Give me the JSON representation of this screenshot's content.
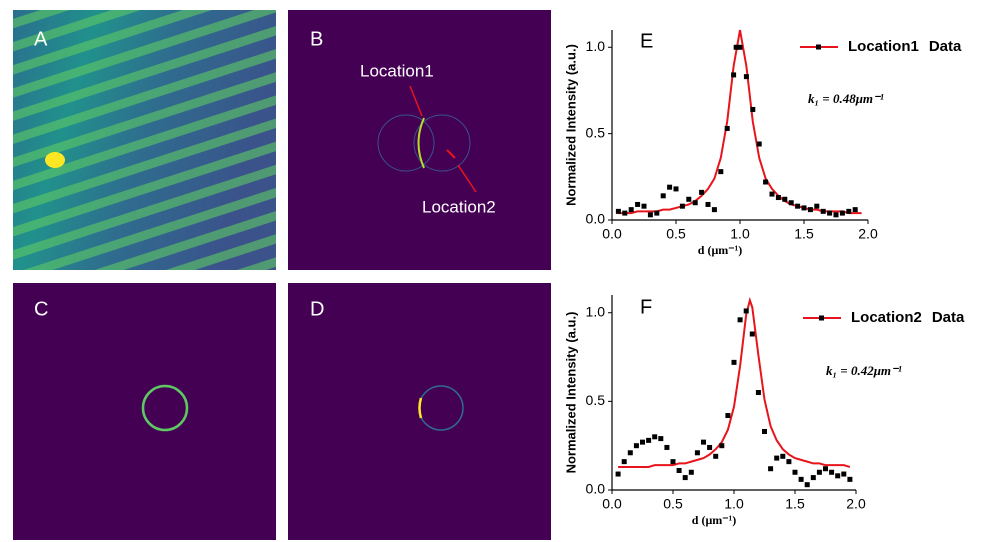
{
  "panels": [
    {
      "label": "A"
    },
    {
      "label": "B",
      "annotations": [
        "Location1",
        "Location2"
      ]
    },
    {
      "label": "C"
    },
    {
      "label": "D"
    }
  ],
  "chart_data": [
    {
      "type": "line",
      "label": "E",
      "xlabel": "d (μm⁻¹)",
      "ylabel": "Normalized Intensity (a.u.)",
      "annotation": "k₁ = 0.48μm⁻¹",
      "xlim": [
        0,
        2
      ],
      "ylim": [
        0,
        1.1
      ],
      "xticks": [
        {
          "value": 0,
          "label": "0.0"
        },
        0.5,
        {
          "value": 1,
          "label": "1.0"
        },
        1.5,
        {
          "value": 2,
          "label": "2.0"
        }
      ],
      "yticks": [
        {
          "value": 0,
          "label": "0.0"
        },
        0.5,
        {
          "value": 1,
          "label": "1.0"
        }
      ],
      "series": [
        {
          "name": "Location1",
          "type": "line",
          "color": "#e8141c",
          "x": [
            0.05,
            0.1,
            0.15,
            0.2,
            0.25,
            0.3,
            0.35,
            0.4,
            0.45,
            0.5,
            0.55,
            0.6,
            0.65,
            0.7,
            0.75,
            0.8,
            0.85,
            0.9,
            0.95,
            1.0,
            1.05,
            1.1,
            1.15,
            1.2,
            1.25,
            1.3,
            1.35,
            1.4,
            1.45,
            1.5,
            1.55,
            1.6,
            1.65,
            1.7,
            1.75,
            1.8,
            1.85,
            1.9,
            1.95
          ],
          "values": [
            0.04,
            0.04,
            0.04,
            0.05,
            0.05,
            0.05,
            0.05,
            0.06,
            0.06,
            0.07,
            0.08,
            0.09,
            0.11,
            0.14,
            0.18,
            0.24,
            0.36,
            0.57,
            0.89,
            1.1,
            0.89,
            0.57,
            0.36,
            0.24,
            0.18,
            0.14,
            0.11,
            0.09,
            0.08,
            0.07,
            0.06,
            0.06,
            0.05,
            0.05,
            0.05,
            0.05,
            0.04,
            0.04,
            0.04
          ]
        },
        {
          "name": "Data",
          "type": "scatter",
          "color": "#000000",
          "x": [
            0.05,
            0.1,
            0.15,
            0.2,
            0.25,
            0.3,
            0.35,
            0.4,
            0.45,
            0.5,
            0.55,
            0.6,
            0.65,
            0.7,
            0.75,
            0.8,
            0.85,
            0.9,
            0.95,
            0.97,
            1.0,
            1.05,
            1.1,
            1.15,
            1.2,
            1.25,
            1.3,
            1.35,
            1.4,
            1.45,
            1.5,
            1.55,
            1.6,
            1.65,
            1.7,
            1.75,
            1.8,
            1.85,
            1.9
          ],
          "values": [
            0.05,
            0.04,
            0.06,
            0.09,
            0.08,
            0.03,
            0.04,
            0.14,
            0.19,
            0.18,
            0.08,
            0.12,
            0.1,
            0.16,
            0.09,
            0.06,
            0.28,
            0.53,
            0.84,
            1.0,
            1.0,
            0.83,
            0.64,
            0.44,
            0.22,
            0.15,
            0.13,
            0.12,
            0.1,
            0.08,
            0.07,
            0.06,
            0.08,
            0.05,
            0.04,
            0.03,
            0.04,
            0.05,
            0.06
          ]
        }
      ]
    },
    {
      "type": "line",
      "label": "F",
      "xlabel": "d (μm⁻¹)",
      "ylabel": "Normalized Intensity (a.u.)",
      "annotation": "k₁ = 0.42μm⁻¹",
      "xlim": [
        0,
        2
      ],
      "ylim": [
        0,
        1.1
      ],
      "xticks": [
        {
          "value": 0,
          "label": "0.0"
        },
        0.5,
        {
          "value": 1,
          "label": "1.0"
        },
        1.5,
        {
          "value": 2,
          "label": "2.0"
        }
      ],
      "yticks": [
        {
          "value": 0,
          "label": "0.0"
        },
        0.5,
        {
          "value": 1,
          "label": "1.0"
        }
      ],
      "series": [
        {
          "name": "Location2",
          "type": "line",
          "color": "#e8141c",
          "x": [
            0.05,
            0.1,
            0.15,
            0.2,
            0.25,
            0.3,
            0.35,
            0.4,
            0.45,
            0.5,
            0.55,
            0.6,
            0.65,
            0.7,
            0.75,
            0.8,
            0.85,
            0.9,
            0.95,
            1.0,
            1.05,
            1.1,
            1.13,
            1.15,
            1.2,
            1.25,
            1.3,
            1.35,
            1.4,
            1.45,
            1.5,
            1.55,
            1.6,
            1.65,
            1.7,
            1.75,
            1.8,
            1.85,
            1.9,
            1.95
          ],
          "values": [
            0.13,
            0.13,
            0.13,
            0.13,
            0.13,
            0.13,
            0.14,
            0.14,
            0.14,
            0.14,
            0.15,
            0.15,
            0.16,
            0.17,
            0.18,
            0.2,
            0.23,
            0.27,
            0.34,
            0.47,
            0.7,
            0.99,
            1.07,
            1.03,
            0.76,
            0.51,
            0.36,
            0.28,
            0.23,
            0.2,
            0.18,
            0.17,
            0.16,
            0.15,
            0.15,
            0.14,
            0.14,
            0.14,
            0.14,
            0.13
          ]
        },
        {
          "name": "Data",
          "type": "scatter",
          "color": "#000000",
          "x": [
            0.05,
            0.1,
            0.15,
            0.2,
            0.25,
            0.3,
            0.35,
            0.4,
            0.45,
            0.5,
            0.55,
            0.6,
            0.65,
            0.7,
            0.75,
            0.8,
            0.85,
            0.9,
            0.95,
            1.0,
            1.05,
            1.1,
            1.15,
            1.2,
            1.25,
            1.3,
            1.35,
            1.4,
            1.45,
            1.5,
            1.55,
            1.6,
            1.65,
            1.7,
            1.75,
            1.8,
            1.85,
            1.9,
            1.95
          ],
          "values": [
            0.09,
            0.16,
            0.21,
            0.25,
            0.27,
            0.28,
            0.3,
            0.29,
            0.24,
            0.16,
            0.11,
            0.07,
            0.1,
            0.21,
            0.27,
            0.24,
            0.19,
            0.25,
            0.42,
            0.72,
            0.96,
            1.01,
            0.88,
            0.55,
            0.33,
            0.12,
            0.18,
            0.19,
            0.16,
            0.1,
            0.06,
            0.03,
            0.07,
            0.1,
            0.12,
            0.1,
            0.08,
            0.09,
            0.06
          ]
        }
      ]
    }
  ]
}
